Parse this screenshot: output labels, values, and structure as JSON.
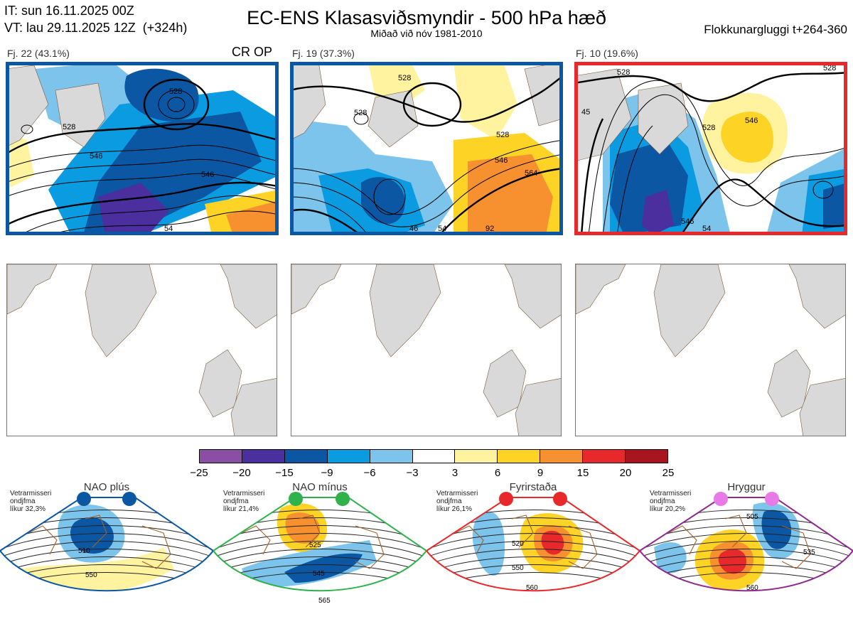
{
  "header": {
    "it_line": "IT: sun 16.11.2025 00Z",
    "vt_line": "VT: lau 29.11.2025 12Z  (+324h)",
    "title": "EC-ENS Klasasviðsmyndir - 500 hPa hæð",
    "subtitle": "Miðað við nóv 1981-2010",
    "window": "Flokkunargluggi t+264-360"
  },
  "clusters": [
    {
      "label": "Fj. 22 (43.1%)",
      "border": "#0b57a4",
      "contours": [
        "528",
        "528",
        "546",
        "546",
        "54"
      ]
    },
    {
      "label": "Fj. 19 (37.3%)",
      "border": "#0b57a4",
      "contours": [
        "528",
        "528",
        "528",
        "546",
        "564",
        "46",
        "54",
        "92"
      ]
    },
    {
      "label": "Fj. 10 (19.6%)",
      "border": "#e8292b",
      "contours": [
        "528",
        "546",
        "528",
        "45",
        "528",
        "546",
        "54"
      ]
    }
  ],
  "cr_op": "CR OP",
  "colorbar": {
    "ticks": [
      "−25",
      "−20",
      "−15",
      "−9",
      "−6",
      "−3",
      "3",
      "6",
      "9",
      "15",
      "20",
      "25"
    ],
    "colors": [
      "#8a4fa5",
      "#4b2f9e",
      "#0b57a4",
      "#0a9be0",
      "#7cc4ec",
      "#ffffff",
      "#fff3a0",
      "#fdd326",
      "#f7902f",
      "#e8292b",
      "#a9151e"
    ]
  },
  "regimes": [
    {
      "name": "NAO plús",
      "stat": "Vetrarmisseri\nondjfma\nlíkur 32,3%",
      "color": "#0b57a4",
      "contours": [
        "510",
        "550"
      ]
    },
    {
      "name": "NAO mínus",
      "stat": "Vetrarmisseri\nondjfma\nlíkur 21,4%",
      "color": "#2fb24c",
      "contours": [
        "525",
        "545",
        "565"
      ]
    },
    {
      "name": "Fyrirstaða",
      "stat": "Vetrarmisseri\nondjfma\nlíkur 26,1%",
      "color": "#e8292b",
      "contours": [
        "520",
        "550",
        "560"
      ]
    },
    {
      "name": "Hryggur",
      "stat": "Vetrarmisseri\nondjfma\nlíkur 20,2%",
      "color": "#8e2a8e",
      "contours": [
        "505",
        "535",
        "560"
      ]
    }
  ],
  "icons": [
    "landmass-grey",
    "dot-marker"
  ]
}
